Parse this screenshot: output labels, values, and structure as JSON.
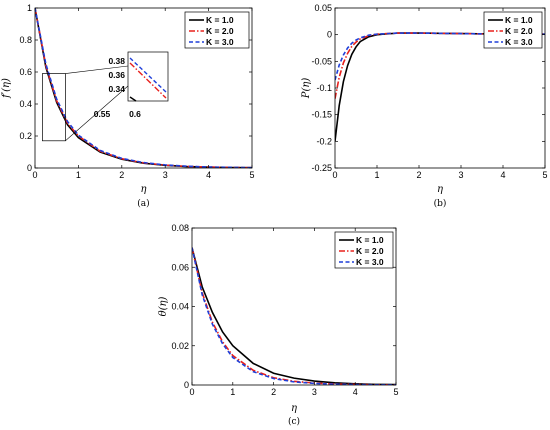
{
  "chart_data": [
    {
      "type": "line",
      "caption": "(a)",
      "xlabel": "η",
      "ylabel": "f′(η)",
      "xlim": [
        0,
        5
      ],
      "ylim": [
        0,
        1
      ],
      "xticks": [
        0,
        1,
        2,
        3,
        4,
        5
      ],
      "yticks": [
        0,
        0.2,
        0.4,
        0.6,
        0.8,
        1
      ],
      "xtick_labels": [
        "0",
        "1",
        "2",
        "3",
        "4",
        "5"
      ],
      "ytick_labels": [
        "0",
        "0.2",
        "0.4",
        "0.6",
        "0.8",
        "1"
      ],
      "legend_position": "top-right",
      "series": [
        {
          "name": "K = 1.0",
          "color": "#000000",
          "style": "solid",
          "x": [
            0,
            0.25,
            0.5,
            0.75,
            1,
            1.5,
            2,
            2.5,
            3,
            3.5,
            4,
            4.5,
            5
          ],
          "y": [
            1.0,
            0.63,
            0.41,
            0.27,
            0.19,
            0.1,
            0.055,
            0.03,
            0.017,
            0.009,
            0.005,
            0.003,
            0.002
          ]
        },
        {
          "name": "K = 2.0",
          "color": "#e8201c",
          "style": "dashdot",
          "x": [
            0,
            0.25,
            0.5,
            0.75,
            1,
            1.5,
            2,
            2.5,
            3,
            3.5,
            4,
            4.5,
            5
          ],
          "y": [
            1.0,
            0.64,
            0.42,
            0.28,
            0.2,
            0.105,
            0.058,
            0.032,
            0.018,
            0.01,
            0.006,
            0.003,
            0.002
          ]
        },
        {
          "name": "K = 3.0",
          "color": "#1f3fd9",
          "style": "dashed",
          "x": [
            0,
            0.25,
            0.5,
            0.75,
            1,
            1.5,
            2,
            2.5,
            3,
            3.5,
            4,
            4.5,
            5
          ],
          "y": [
            1.0,
            0.65,
            0.43,
            0.29,
            0.205,
            0.11,
            0.06,
            0.034,
            0.019,
            0.011,
            0.006,
            0.004,
            0.002
          ]
        }
      ],
      "inset": {
        "xlim": [
          0.5,
          0.65
        ],
        "ylim": [
          0.33,
          0.39
        ],
        "xtick_labels": [
          "0.55",
          "0.6"
        ],
        "ytick_labels": [
          "0.38",
          "0.36",
          "0.34"
        ]
      }
    },
    {
      "type": "line",
      "caption": "(b)",
      "xlabel": "η",
      "ylabel": "P(η)",
      "xlim": [
        0,
        5
      ],
      "ylim": [
        -0.25,
        0.05
      ],
      "xticks": [
        0,
        1,
        2,
        3,
        4,
        5
      ],
      "yticks": [
        0.05,
        0,
        -0.05,
        -0.1,
        -0.15,
        -0.2,
        -0.25
      ],
      "xtick_labels": [
        "0",
        "1",
        "2",
        "3",
        "4",
        "5"
      ],
      "ytick_labels": [
        "0.05",
        "0",
        "-0.05",
        "-0.1",
        "-0.15",
        "-0.2",
        "-0.25"
      ],
      "legend_position": "top-right",
      "series": [
        {
          "name": "K = 1.0",
          "color": "#000000",
          "style": "solid",
          "x": [
            0,
            0.1,
            0.2,
            0.3,
            0.4,
            0.5,
            0.6,
            0.8,
            1,
            1.5,
            2,
            3,
            4,
            5
          ],
          "y": [
            -0.2,
            -0.133,
            -0.088,
            -0.058,
            -0.037,
            -0.023,
            -0.013,
            -0.004,
            0.0,
            0.003,
            0.003,
            0.002,
            0.001,
            0.001
          ]
        },
        {
          "name": "K = 2.0",
          "color": "#e8201c",
          "style": "dashdot",
          "x": [
            0,
            0.1,
            0.2,
            0.3,
            0.4,
            0.5,
            0.6,
            0.8,
            1,
            1.5,
            2,
            3,
            4,
            5
          ],
          "y": [
            -0.12,
            -0.08,
            -0.053,
            -0.035,
            -0.022,
            -0.014,
            -0.008,
            -0.002,
            0.001,
            0.003,
            0.003,
            0.002,
            0.001,
            0.001
          ]
        },
        {
          "name": "K = 3.0",
          "color": "#1f3fd9",
          "style": "dashed",
          "x": [
            0,
            0.1,
            0.2,
            0.3,
            0.4,
            0.5,
            0.6,
            0.8,
            1,
            1.5,
            2,
            3,
            4,
            5
          ],
          "y": [
            -0.085,
            -0.057,
            -0.038,
            -0.025,
            -0.016,
            -0.01,
            -0.006,
            -0.001,
            0.001,
            0.003,
            0.003,
            0.002,
            0.001,
            0.001
          ]
        }
      ]
    },
    {
      "type": "line",
      "caption": "(c)",
      "xlabel": "η",
      "ylabel": "θ(η)",
      "xlim": [
        0,
        5
      ],
      "ylim": [
        0,
        0.08
      ],
      "xticks": [
        0,
        1,
        2,
        3,
        4,
        5
      ],
      "yticks": [
        0,
        0.02,
        0.04,
        0.06,
        0.08
      ],
      "xtick_labels": [
        "0",
        "1",
        "2",
        "3",
        "4",
        "5"
      ],
      "ytick_labels": [
        "0",
        "0.02",
        "0.04",
        "0.06",
        "0.08"
      ],
      "legend_position": "top-right",
      "series": [
        {
          "name": "K = 1.0",
          "color": "#000000",
          "style": "solid",
          "x": [
            0,
            0.25,
            0.5,
            0.75,
            1,
            1.5,
            2,
            2.5,
            3,
            3.5,
            4,
            4.5,
            5
          ],
          "y": [
            0.07,
            0.05,
            0.037,
            0.027,
            0.02,
            0.011,
            0.006,
            0.0035,
            0.002,
            0.0011,
            0.0006,
            0.0003,
            0.0002
          ]
        },
        {
          "name": "K = 2.0",
          "color": "#e8201c",
          "style": "dashdot",
          "x": [
            0,
            0.25,
            0.5,
            0.75,
            1,
            1.5,
            2,
            2.5,
            3,
            3.5,
            4,
            4.5,
            5
          ],
          "y": [
            0.07,
            0.047,
            0.032,
            0.022,
            0.015,
            0.0075,
            0.0037,
            0.0019,
            0.001,
            0.0005,
            0.0003,
            0.0001,
            0.0001
          ]
        },
        {
          "name": "K = 3.0",
          "color": "#1f3fd9",
          "style": "dashed",
          "x": [
            0,
            0.25,
            0.5,
            0.75,
            1,
            1.5,
            2,
            2.5,
            3,
            3.5,
            4,
            4.5,
            5
          ],
          "y": [
            0.07,
            0.046,
            0.031,
            0.021,
            0.014,
            0.0068,
            0.0033,
            0.0016,
            0.0008,
            0.0004,
            0.0002,
            0.0001,
            0.0001
          ]
        }
      ]
    }
  ]
}
